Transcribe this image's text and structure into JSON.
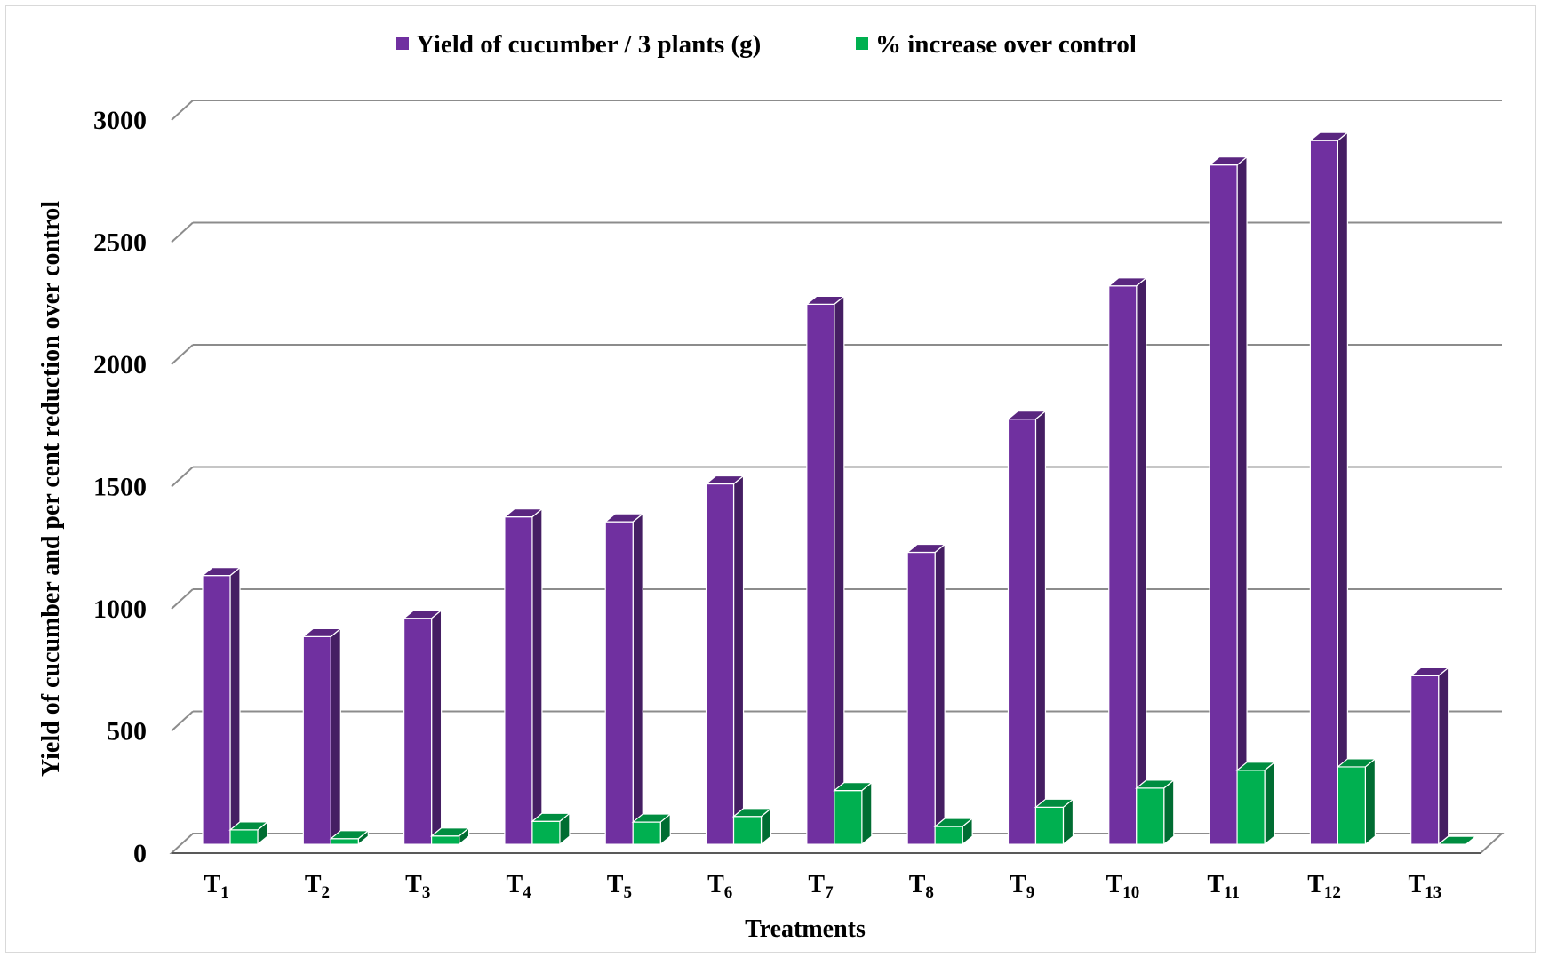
{
  "chart_data": {
    "type": "bar",
    "categories": [
      "T1",
      "T2",
      "T3",
      "T4",
      "T5",
      "T6",
      "T7",
      "T8",
      "T9",
      "T10",
      "T11",
      "T12",
      "T13"
    ],
    "category_labels": [
      {
        "base": "T",
        "sub": "1"
      },
      {
        "base": "T",
        "sub": "2"
      },
      {
        "base": "T",
        "sub": "3"
      },
      {
        "base": "T",
        "sub": "4"
      },
      {
        "base": "T",
        "sub": "5"
      },
      {
        "base": "T",
        "sub": "6"
      },
      {
        "base": "T",
        "sub": "7"
      },
      {
        "base": "T",
        "sub": "8"
      },
      {
        "base": "T",
        "sub": "9"
      },
      {
        "base": "T",
        "sub": "10"
      },
      {
        "base": "T",
        "sub": "11"
      },
      {
        "base": "T",
        "sub": "12"
      },
      {
        "base": "T",
        "sub": "13"
      }
    ],
    "series": [
      {
        "name": "Yield of cucumber / 3 plants (g)",
        "color": "#7030a0",
        "values": [
          1100,
          850,
          925,
          1340,
          1320,
          1475,
          2210,
          1195,
          1740,
          2285,
          2780,
          2880,
          690
        ]
      },
      {
        "name": "% increase over control",
        "color": "#00b050",
        "values": [
          59,
          23,
          34,
          94,
          91,
          114,
          220,
          73,
          152,
          230,
          303,
          317,
          0
        ]
      }
    ],
    "title": "",
    "xlabel": "Treatments",
    "ylabel": "Yield of cucumber and per cent reduction over control",
    "ylim": [
      0,
      3000
    ],
    "yticks": [
      0,
      500,
      1000,
      1500,
      2000,
      2500,
      3000
    ],
    "grid": true,
    "legend_position": "top-center",
    "style": "3d-clustered-column"
  }
}
